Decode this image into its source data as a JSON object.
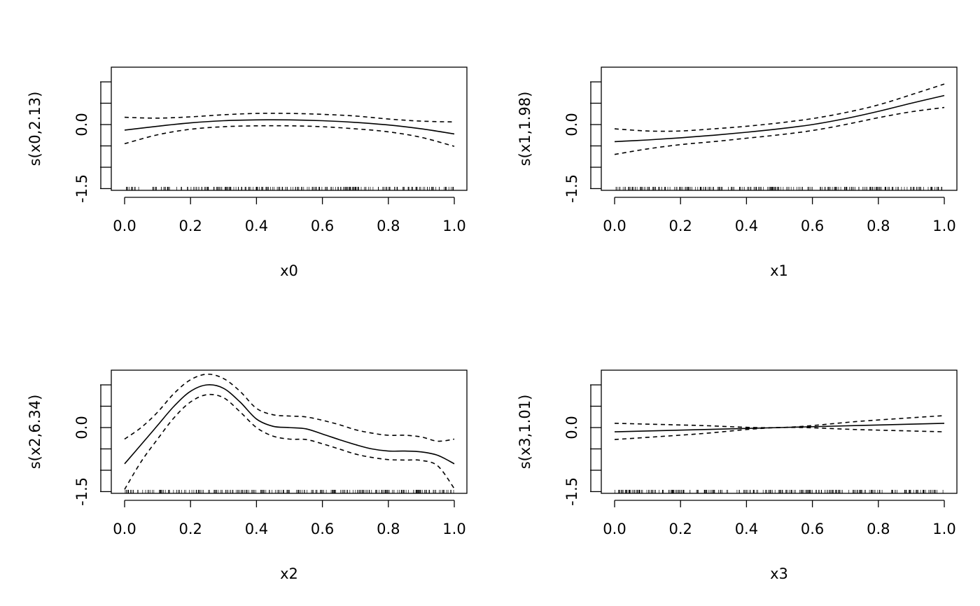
{
  "chart_data": [
    {
      "type": "line",
      "title": "",
      "xlabel": "x0",
      "ylabel": "s(x0,2.13)",
      "xlim": [
        0.0,
        1.0
      ],
      "ylim": [
        -1.5,
        1.5
      ],
      "xticks": [
        "0.0",
        "0.2",
        "0.4",
        "0.6",
        "0.8",
        "1.0"
      ],
      "yticks_labeled": [
        "-1.5",
        "0.0"
      ],
      "grid": false,
      "x": [
        0.0,
        0.1,
        0.2,
        0.3,
        0.4,
        0.5,
        0.6,
        0.7,
        0.8,
        0.9,
        1.0
      ],
      "series": [
        {
          "style": "solid",
          "values": [
            -0.13,
            -0.04,
            0.04,
            0.09,
            0.11,
            0.11,
            0.09,
            0.05,
            -0.01,
            -0.1,
            -0.22
          ]
        },
        {
          "style": "dashed",
          "values": [
            0.17,
            0.15,
            0.18,
            0.23,
            0.26,
            0.26,
            0.24,
            0.2,
            0.13,
            0.08,
            0.06
          ]
        },
        {
          "style": "dashed",
          "values": [
            -0.45,
            -0.24,
            -0.11,
            -0.05,
            -0.03,
            -0.03,
            -0.05,
            -0.1,
            -0.17,
            -0.3,
            -0.51
          ]
        }
      ]
    },
    {
      "type": "line",
      "title": "",
      "xlabel": "x1",
      "ylabel": "s(x1,1.98)",
      "xlim": [
        0.0,
        1.0
      ],
      "ylim": [
        -1.5,
        1.5
      ],
      "xticks": [
        "0.0",
        "0.2",
        "0.4",
        "0.6",
        "0.8",
        "1.0"
      ],
      "yticks_labeled": [
        "-1.5",
        "0.0"
      ],
      "grid": false,
      "x": [
        0.0,
        0.1,
        0.2,
        0.3,
        0.4,
        0.5,
        0.6,
        0.7,
        0.8,
        0.9,
        1.0
      ],
      "series": [
        {
          "style": "solid",
          "values": [
            -0.4,
            -0.36,
            -0.31,
            -0.25,
            -0.18,
            -0.1,
            0.0,
            0.14,
            0.31,
            0.5,
            0.68
          ]
        },
        {
          "style": "dashed",
          "values": [
            -0.1,
            -0.15,
            -0.15,
            -0.1,
            -0.04,
            0.04,
            0.14,
            0.28,
            0.46,
            0.7,
            0.95
          ]
        },
        {
          "style": "dashed",
          "values": [
            -0.7,
            -0.57,
            -0.47,
            -0.4,
            -0.32,
            -0.24,
            -0.14,
            0.0,
            0.16,
            0.3,
            0.4
          ]
        }
      ]
    },
    {
      "type": "line",
      "title": "",
      "xlabel": "x2",
      "ylabel": "s(x2,6.34)",
      "xlim": [
        0.0,
        1.0
      ],
      "ylim": [
        -1.5,
        1.5
      ],
      "xticks": [
        "0.0",
        "0.2",
        "0.4",
        "0.6",
        "0.8",
        "1.0"
      ],
      "yticks_labeled": [
        "-1.5",
        "0.0"
      ],
      "grid": false,
      "x": [
        0.0,
        0.05,
        0.1,
        0.15,
        0.2,
        0.25,
        0.3,
        0.35,
        0.4,
        0.45,
        0.5,
        0.55,
        0.6,
        0.65,
        0.7,
        0.75,
        0.8,
        0.85,
        0.9,
        0.95,
        1.0
      ],
      "series": [
        {
          "style": "solid",
          "values": [
            -0.85,
            -0.4,
            0.05,
            0.5,
            0.85,
            1.0,
            0.92,
            0.6,
            0.2,
            0.03,
            0.0,
            -0.03,
            -0.15,
            -0.28,
            -0.4,
            -0.5,
            -0.55,
            -0.55,
            -0.57,
            -0.65,
            -0.85
          ]
        },
        {
          "style": "dashed",
          "values": [
            -0.27,
            0.0,
            0.36,
            0.8,
            1.12,
            1.25,
            1.15,
            0.85,
            0.45,
            0.3,
            0.27,
            0.25,
            0.17,
            0.07,
            -0.05,
            -0.13,
            -0.18,
            -0.18,
            -0.22,
            -0.32,
            -0.27
          ]
        },
        {
          "style": "dashed",
          "values": [
            -1.45,
            -0.8,
            -0.27,
            0.23,
            0.6,
            0.77,
            0.7,
            0.37,
            0.0,
            -0.2,
            -0.27,
            -0.28,
            -0.38,
            -0.5,
            -0.62,
            -0.7,
            -0.75,
            -0.76,
            -0.77,
            -0.9,
            -1.43
          ]
        }
      ]
    },
    {
      "type": "line",
      "title": "",
      "xlabel": "x3",
      "ylabel": "s(x3,1.01)",
      "xlim": [
        0.0,
        1.0
      ],
      "ylim": [
        -1.5,
        1.5
      ],
      "xticks": [
        "0.0",
        "0.2",
        "0.4",
        "0.6",
        "0.8",
        "1.0"
      ],
      "yticks_labeled": [
        "-1.5",
        "0.0"
      ],
      "grid": false,
      "x": [
        0.0,
        0.25,
        0.5,
        0.75,
        1.0
      ],
      "series": [
        {
          "style": "solid",
          "values": [
            -0.1,
            -0.05,
            0.0,
            0.05,
            0.1
          ]
        },
        {
          "style": "dashed",
          "values": [
            0.1,
            0.05,
            0.0,
            0.15,
            0.28
          ]
        },
        {
          "style": "dashed",
          "values": [
            -0.28,
            -0.15,
            0.0,
            -0.05,
            -0.1
          ]
        }
      ]
    }
  ]
}
